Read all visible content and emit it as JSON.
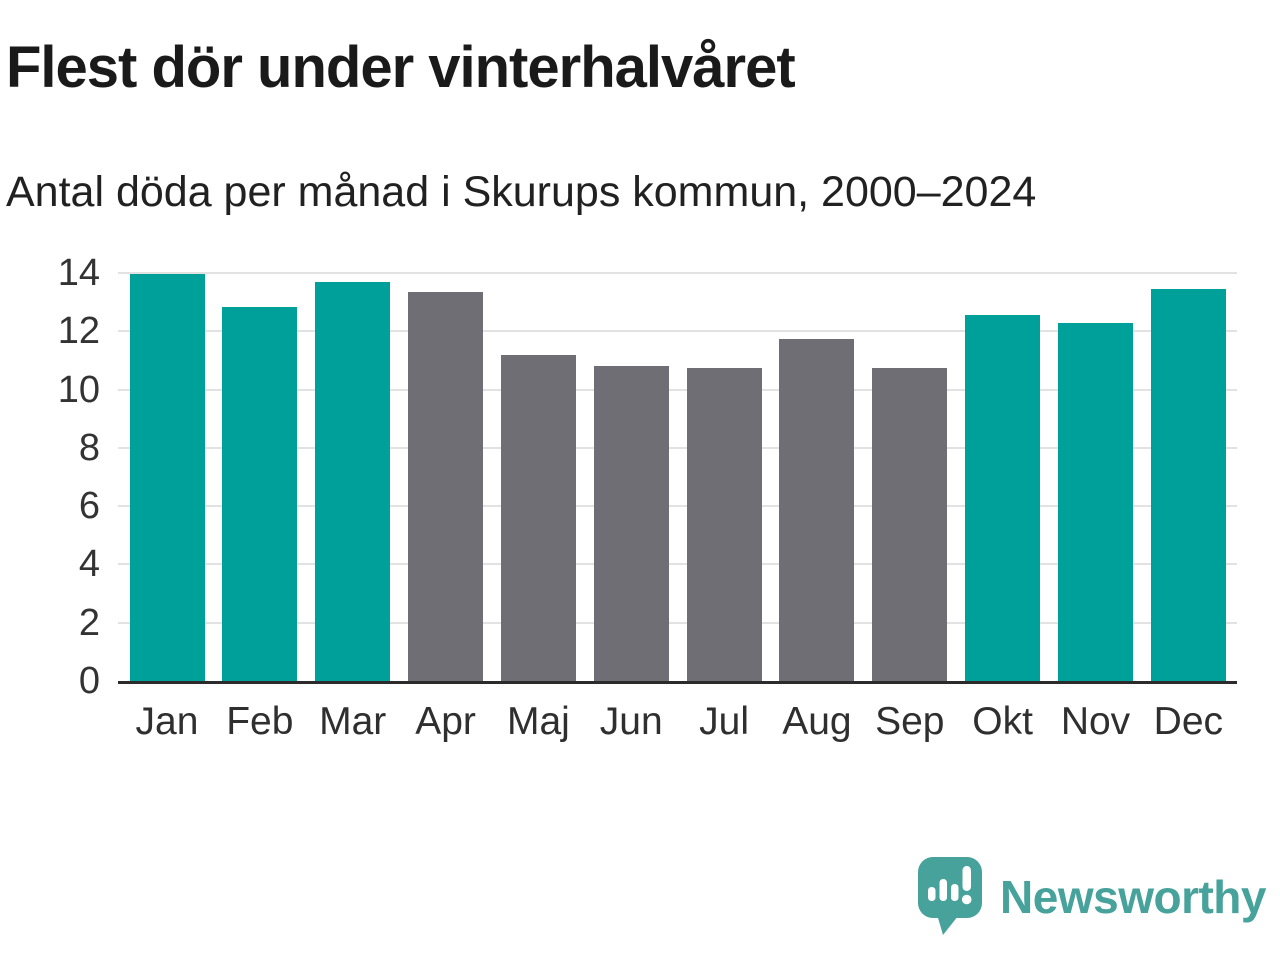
{
  "header": {
    "title": "Flest dör under vinterhalvåret",
    "subtitle": "Antal döda per månad i Skurups kommun, 2000–2024"
  },
  "chart_data": {
    "type": "bar",
    "categories": [
      "Jan",
      "Feb",
      "Mar",
      "Apr",
      "Maj",
      "Jun",
      "Jul",
      "Aug",
      "Sep",
      "Okt",
      "Nov",
      "Dec"
    ],
    "values": [
      13.95,
      12.85,
      13.7,
      13.35,
      11.2,
      10.8,
      10.75,
      11.75,
      10.75,
      12.55,
      12.3,
      13.45
    ],
    "title": "Flest dör under vinterhalvåret",
    "subtitle": "Antal döda per månad i Skurups kommun, 2000–2024",
    "xlabel": "",
    "ylabel": "",
    "ylim": [
      0,
      14
    ],
    "yticks": [
      0,
      2,
      4,
      6,
      8,
      10,
      12,
      14
    ],
    "grid": true,
    "legend": "none",
    "bar_colors": [
      "#00a09a",
      "#00a09a",
      "#00a09a",
      "#6e6e74",
      "#6e6e74",
      "#6e6e74",
      "#6e6e74",
      "#6e6e74",
      "#6e6e74",
      "#00a09a",
      "#00a09a",
      "#00a09a"
    ],
    "highlighted_months": [
      "Jan",
      "Feb",
      "Mar",
      "Okt",
      "Nov",
      "Dec"
    ]
  },
  "colors": {
    "accent_teal": "#00a09a",
    "neutral_gray": "#6e6e74",
    "gridline": "#e2e2e2",
    "axis_line": "#2b2b2b",
    "title_text": "#1a1a1a",
    "tick_text": "#333333",
    "brand_teal": "#46a29b"
  },
  "footer": {
    "brand": "Newsworthy",
    "logo_icon": "speech-bubble-bar-chart-exclamation"
  }
}
